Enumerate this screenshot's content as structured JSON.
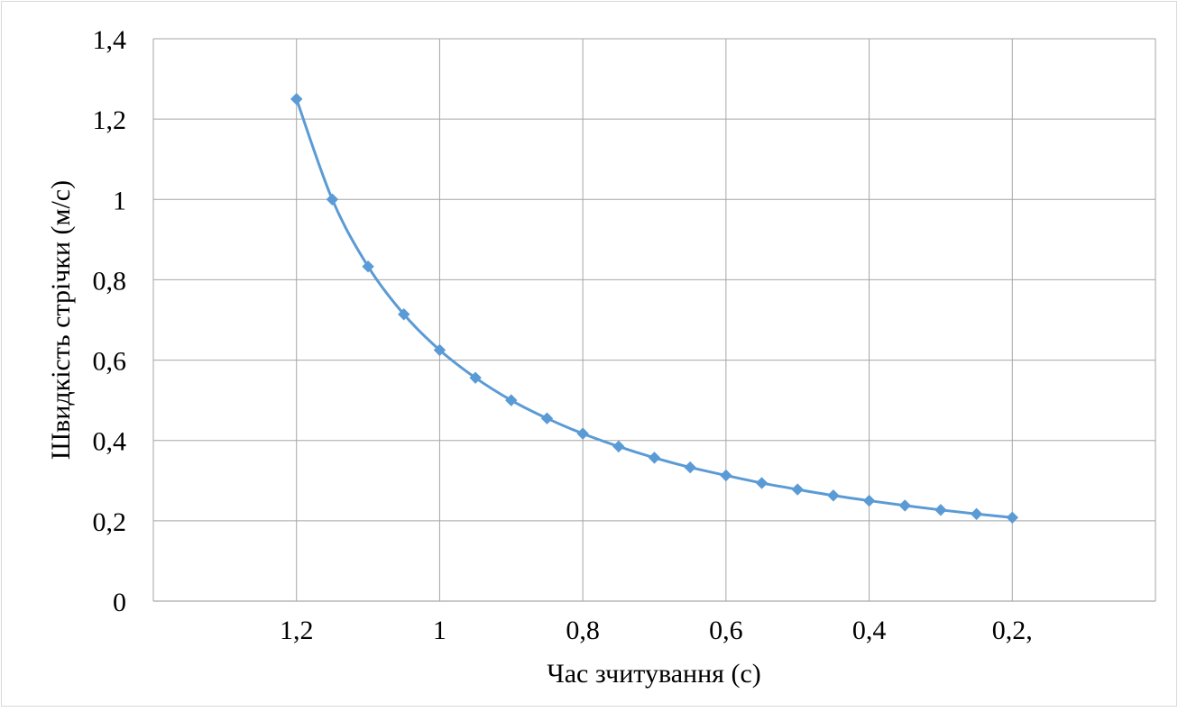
{
  "chart_data": {
    "type": "line",
    "title": "",
    "xlabel": "Час зчитування (с)",
    "ylabel": "Швидкість стрічки (м/с)",
    "x_axis_reversed": true,
    "xlim": [
      1.4,
      0.0
    ],
    "ylim": [
      0,
      1.4
    ],
    "grid": true,
    "legend": "none",
    "x_tick_values": [
      1.2,
      1.0,
      0.8,
      0.6,
      0.4,
      0.2
    ],
    "x_tick_labels": [
      "1,2",
      "1",
      "0,8",
      "0,6",
      "0,4",
      "0,2,"
    ],
    "y_tick_values": [
      0,
      0.2,
      0.4,
      0.6,
      0.8,
      1.0,
      1.2,
      1.4
    ],
    "y_tick_labels": [
      "0",
      "0,2",
      "0,4",
      "0,6",
      "0,8",
      "1",
      "1,2",
      "1,4"
    ],
    "series": [
      {
        "color": "#5B9BD5",
        "marker": "diamond",
        "smooth": true,
        "x": [
          1.2,
          1.15,
          1.1,
          1.05,
          1.0,
          0.95,
          0.9,
          0.85,
          0.8,
          0.75,
          0.7,
          0.65,
          0.6,
          0.55,
          0.5,
          0.45,
          0.4,
          0.35,
          0.3,
          0.25,
          0.2
        ],
        "values": [
          1.25,
          1.0,
          0.833,
          0.714,
          0.625,
          0.556,
          0.5,
          0.455,
          0.417,
          0.385,
          0.357,
          0.333,
          0.313,
          0.294,
          0.278,
          0.263,
          0.25,
          0.238,
          0.227,
          0.217,
          0.208
        ]
      }
    ]
  }
}
